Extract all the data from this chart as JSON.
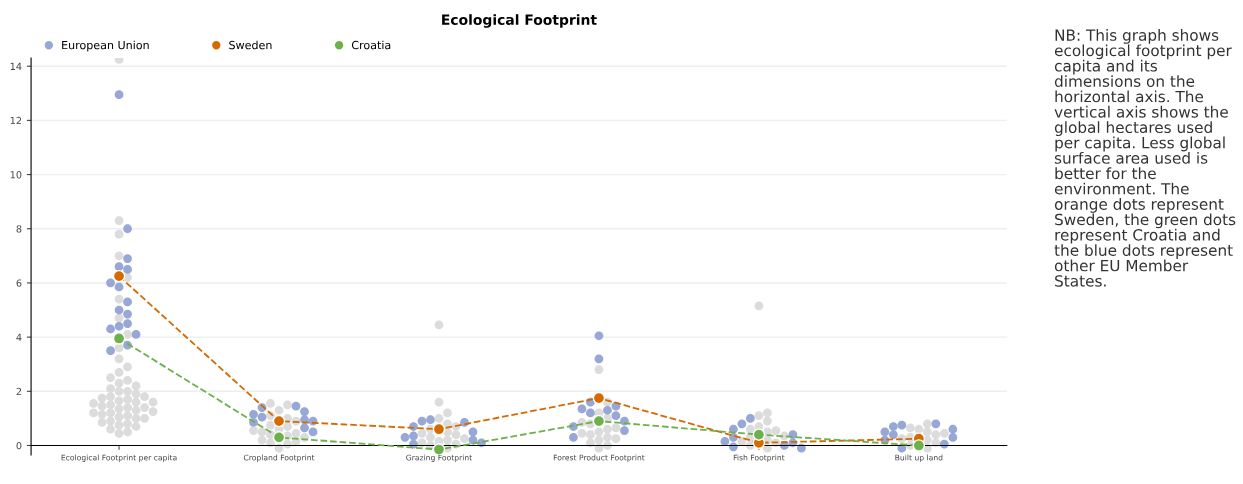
{
  "chart_data": {
    "type": "scatter",
    "title": "Ecological Footprint",
    "categories": [
      "Ecological Footprint per capita",
      "Cropland Footprint",
      "Grazing Footprint",
      "Forest Product Footprint",
      "Fish Footprint",
      "Built up land"
    ],
    "ylim": [
      -0.35,
      14.3
    ],
    "yticks": [
      0,
      2,
      4,
      6,
      8,
      10,
      12,
      14
    ],
    "grid": "y",
    "legend": "top left",
    "marker": "circle",
    "series": [
      {
        "type": "scatter",
        "color": "#dcdcdc",
        "x": [
          "Ecological Footprint per capita",
          "Ecological Footprint per capita",
          "Ecological Footprint per capita",
          "Ecological Footprint per capita",
          "Ecological Footprint per capita",
          "Ecological Footprint per capita",
          "Ecological Footprint per capita",
          "Ecological Footprint per capita",
          "Ecological Footprint per capita",
          "Ecological Footprint per capita",
          "Ecological Footprint per capita",
          "Ecological Footprint per capita",
          "Ecological Footprint per capita",
          "Ecological Footprint per capita",
          "Ecological Footprint per capita",
          "Ecological Footprint per capita",
          "Ecological Footprint per capita",
          "Ecological Footprint per capita",
          "Ecological Footprint per capita",
          "Ecological Footprint per capita",
          "Ecological Footprint per capita",
          "Ecological Footprint per capita",
          "Ecological Footprint per capita",
          "Ecological Footprint per capita",
          "Ecological Footprint per capita",
          "Ecological Footprint per capita",
          "Ecological Footprint per capita",
          "Ecological Footprint per capita",
          "Ecological Footprint per capita",
          "Ecological Footprint per capita",
          "Ecological Footprint per capita",
          "Ecological Footprint per capita",
          "Ecological Footprint per capita",
          "Ecological Footprint per capita",
          "Ecological Footprint per capita",
          "Ecological Footprint per capita",
          "Ecological Footprint per capita",
          "Ecological Footprint per capita",
          "Ecological Footprint per capita",
          "Ecological Footprint per capita",
          "Ecological Footprint per capita",
          "Ecological Footprint per capita",
          "Ecological Footprint per capita",
          "Ecological Footprint per capita",
          "Ecological Footprint per capita",
          "Ecological Footprint per capita",
          "Ecological Footprint per capita",
          "Ecological Footprint per capita",
          "Ecological Footprint per capita",
          "Ecological Footprint per capita",
          "Cropland Footprint",
          "Cropland Footprint",
          "Cropland Footprint",
          "Cropland Footprint",
          "Cropland Footprint",
          "Cropland Footprint",
          "Cropland Footprint",
          "Cropland Footprint",
          "Cropland Footprint",
          "Cropland Footprint",
          "Cropland Footprint",
          "Cropland Footprint",
          "Cropland Footprint",
          "Cropland Footprint",
          "Cropland Footprint",
          "Cropland Footprint",
          "Cropland Footprint",
          "Cropland Footprint",
          "Cropland Footprint",
          "Cropland Footprint",
          "Grazing Footprint",
          "Grazing Footprint",
          "Grazing Footprint",
          "Grazing Footprint",
          "Grazing Footprint",
          "Grazing Footprint",
          "Grazing Footprint",
          "Grazing Footprint",
          "Grazing Footprint",
          "Grazing Footprint",
          "Grazing Footprint",
          "Grazing Footprint",
          "Grazing Footprint",
          "Grazing Footprint",
          "Grazing Footprint",
          "Grazing Footprint",
          "Grazing Footprint",
          "Grazing Footprint",
          "Forest Product Footprint",
          "Forest Product Footprint",
          "Forest Product Footprint",
          "Forest Product Footprint",
          "Forest Product Footprint",
          "Forest Product Footprint",
          "Forest Product Footprint",
          "Forest Product Footprint",
          "Forest Product Footprint",
          "Forest Product Footprint",
          "Forest Product Footprint",
          "Forest Product Footprint",
          "Forest Product Footprint",
          "Forest Product Footprint",
          "Forest Product Footprint",
          "Forest Product Footprint",
          "Forest Product Footprint",
          "Fish Footprint",
          "Fish Footprint",
          "Fish Footprint",
          "Fish Footprint",
          "Fish Footprint",
          "Fish Footprint",
          "Fish Footprint",
          "Fish Footprint",
          "Fish Footprint",
          "Fish Footprint",
          "Fish Footprint",
          "Fish Footprint",
          "Fish Footprint",
          "Fish Footprint",
          "Fish Footprint",
          "Built up land",
          "Built up land",
          "Built up land",
          "Built up land",
          "Built up land",
          "Built up land",
          "Built up land",
          "Built up land",
          "Built up land",
          "Built up land",
          "Built up land",
          "Built up land"
        ],
        "values": [
          0.45,
          0.5,
          0.6,
          0.7,
          0.75,
          0.8,
          0.85,
          0.9,
          1.0,
          1.0,
          1.05,
          1.1,
          1.15,
          1.2,
          1.2,
          1.25,
          1.3,
          1.35,
          1.4,
          1.4,
          1.45,
          1.5,
          1.55,
          1.6,
          1.6,
          1.65,
          1.7,
          1.75,
          1.8,
          1.8,
          1.9,
          2.0,
          2.0,
          2.1,
          2.2,
          2.3,
          2.4,
          2.5,
          2.7,
          2.9,
          3.2,
          3.6,
          4.1,
          4.7,
          5.4,
          6.2,
          7.0,
          7.8,
          8.3,
          14.25,
          -0.1,
          0.05,
          0.1,
          0.15,
          0.2,
          0.3,
          0.35,
          0.4,
          0.45,
          0.5,
          0.55,
          0.6,
          0.7,
          0.75,
          0.9,
          1.0,
          1.1,
          1.3,
          1.5,
          1.55,
          -0.1,
          0.0,
          0.05,
          0.1,
          0.15,
          0.2,
          0.25,
          0.3,
          0.4,
          0.45,
          0.5,
          0.6,
          0.7,
          0.8,
          1.0,
          1.2,
          1.6,
          4.45,
          -0.1,
          0.0,
          0.1,
          0.2,
          0.25,
          0.3,
          0.4,
          0.45,
          0.5,
          0.6,
          0.65,
          0.8,
          0.85,
          1.0,
          1.2,
          1.6,
          2.8,
          -0.1,
          0.0,
          0.1,
          0.15,
          0.2,
          0.3,
          0.35,
          0.5,
          0.55,
          0.6,
          0.7,
          0.9,
          1.1,
          1.2,
          5.15,
          -0.1,
          0.0,
          0.1,
          0.2,
          0.25,
          0.3,
          0.4,
          0.45,
          0.5,
          0.6,
          0.65,
          0.8
        ]
      },
      {
        "type": "scatter",
        "name": "European Union",
        "color": "#98a8d6",
        "x": [
          "Ecological Footprint per capita",
          "Ecological Footprint per capita",
          "Ecological Footprint per capita",
          "Ecological Footprint per capita",
          "Ecological Footprint per capita",
          "Ecological Footprint per capita",
          "Ecological Footprint per capita",
          "Ecological Footprint per capita",
          "Ecological Footprint per capita",
          "Ecological Footprint per capita",
          "Ecological Footprint per capita",
          "Ecological Footprint per capita",
          "Ecological Footprint per capita",
          "Ecological Footprint per capita",
          "Ecological Footprint per capita",
          "Ecological Footprint per capita",
          "Cropland Footprint",
          "Cropland Footprint",
          "Cropland Footprint",
          "Cropland Footprint",
          "Cropland Footprint",
          "Cropland Footprint",
          "Cropland Footprint",
          "Cropland Footprint",
          "Cropland Footprint",
          "Cropland Footprint",
          "Grazing Footprint",
          "Grazing Footprint",
          "Grazing Footprint",
          "Grazing Footprint",
          "Grazing Footprint",
          "Grazing Footprint",
          "Grazing Footprint",
          "Grazing Footprint",
          "Grazing Footprint",
          "Grazing Footprint",
          "Forest Product Footprint",
          "Forest Product Footprint",
          "Forest Product Footprint",
          "Forest Product Footprint",
          "Forest Product Footprint",
          "Forest Product Footprint",
          "Forest Product Footprint",
          "Forest Product Footprint",
          "Forest Product Footprint",
          "Forest Product Footprint",
          "Forest Product Footprint",
          "Forest Product Footprint",
          "Fish Footprint",
          "Fish Footprint",
          "Fish Footprint",
          "Fish Footprint",
          "Fish Footprint",
          "Fish Footprint",
          "Fish Footprint",
          "Fish Footprint",
          "Fish Footprint",
          "Fish Footprint",
          "Built up land",
          "Built up land",
          "Built up land",
          "Built up land",
          "Built up land",
          "Built up land",
          "Built up land",
          "Built up land",
          "Built up land",
          "Built up land"
        ],
        "values": [
          12.95,
          8.0,
          6.9,
          6.6,
          6.5,
          6.0,
          5.85,
          5.3,
          5.0,
          4.85,
          4.5,
          4.4,
          4.3,
          4.1,
          3.7,
          3.5,
          1.45,
          1.4,
          1.25,
          1.15,
          1.05,
          0.95,
          0.85,
          0.65,
          0.5,
          0.9,
          0.95,
          0.9,
          0.85,
          0.7,
          0.5,
          0.35,
          0.3,
          0.2,
          0.1,
          0.05,
          4.05,
          3.2,
          1.6,
          1.45,
          1.35,
          1.3,
          1.2,
          1.1,
          0.9,
          0.7,
          0.55,
          0.3,
          1.0,
          0.8,
          0.6,
          0.4,
          0.3,
          0.15,
          0.1,
          0.0,
          -0.05,
          -0.1,
          0.8,
          0.75,
          0.7,
          0.6,
          0.5,
          0.4,
          0.3,
          0.2,
          0.05,
          -0.1
        ]
      },
      {
        "type": "line",
        "name": "Sweden",
        "color": "#d46a00",
        "line_style": "dashed",
        "values": [
          6.25,
          0.9,
          0.6,
          1.75,
          0.1,
          0.25
        ]
      },
      {
        "type": "line",
        "name": "Croatia",
        "color": "#6db14b",
        "line_style": "dashed",
        "values": [
          3.95,
          0.3,
          -0.15,
          0.9,
          0.4,
          0.0
        ]
      }
    ],
    "annotations": [
      "NB: This graph shows ecological footprint per capita and its dimensions on the horizontal axis. The vertical axis shows the global hectares used per capita. Less global surface area used is better for the environment. The orange dots represent Sweden, the green dots represent Croatia and the blue dots represent other EU Member States."
    ]
  }
}
